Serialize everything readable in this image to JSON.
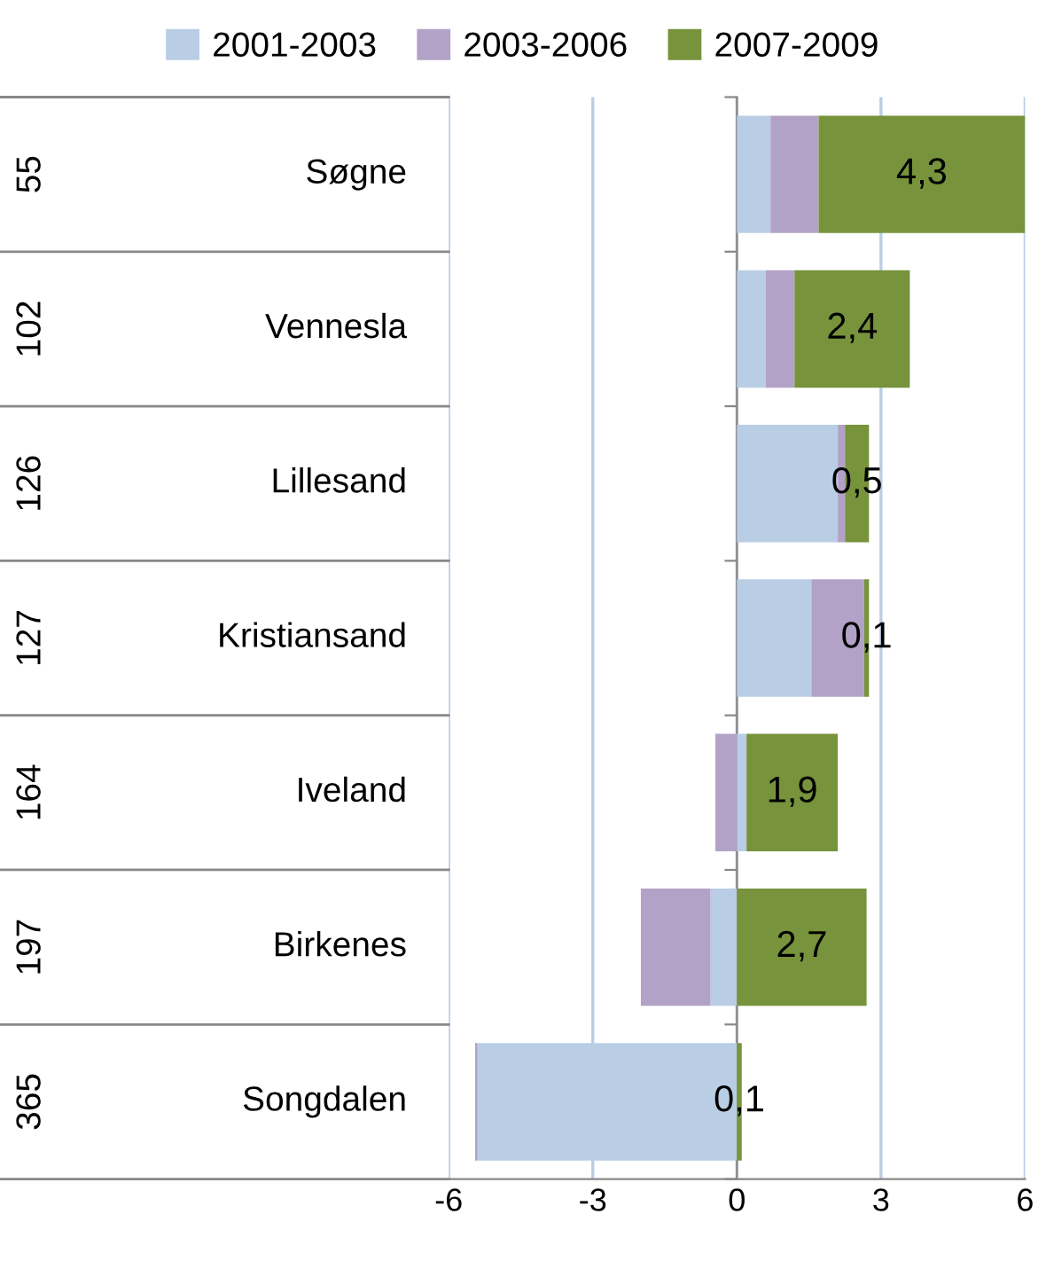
{
  "chart_data": {
    "type": "bar",
    "orientation": "horizontal",
    "stacked": true,
    "categories": [
      "Søgne",
      "Vennesla",
      "Lillesand",
      "Kristiansand",
      "Iveland",
      "Birkenes",
      "Songdalen"
    ],
    "series": [
      {
        "name": "2001-2003",
        "color": "#b9cde5",
        "values": [
          0.7,
          0.6,
          2.1,
          1.55,
          0.2,
          -0.55,
          -5.4
        ]
      },
      {
        "name": "2003-2006",
        "color": "#b3a2c7",
        "values": [
          1.0,
          0.6,
          0.15,
          1.1,
          -0.45,
          -1.45,
          -0.05
        ]
      },
      {
        "name": "2007-2009",
        "color": "#77933c",
        "values": [
          4.3,
          2.4,
          0.5,
          0.1,
          1.9,
          2.7,
          0.1
        ],
        "value_labels": [
          "4,3",
          "2,4",
          "0,5",
          "0,1",
          "1,9",
          "2,7",
          "0,1"
        ]
      }
    ],
    "xlim": [
      -6,
      6
    ],
    "xticks": [
      -6,
      -3,
      0,
      3,
      6
    ],
    "grid": "x",
    "legend": "top",
    "annotations": [
      "55",
      "102",
      "126",
      "127",
      "164",
      "197",
      "365"
    ]
  }
}
